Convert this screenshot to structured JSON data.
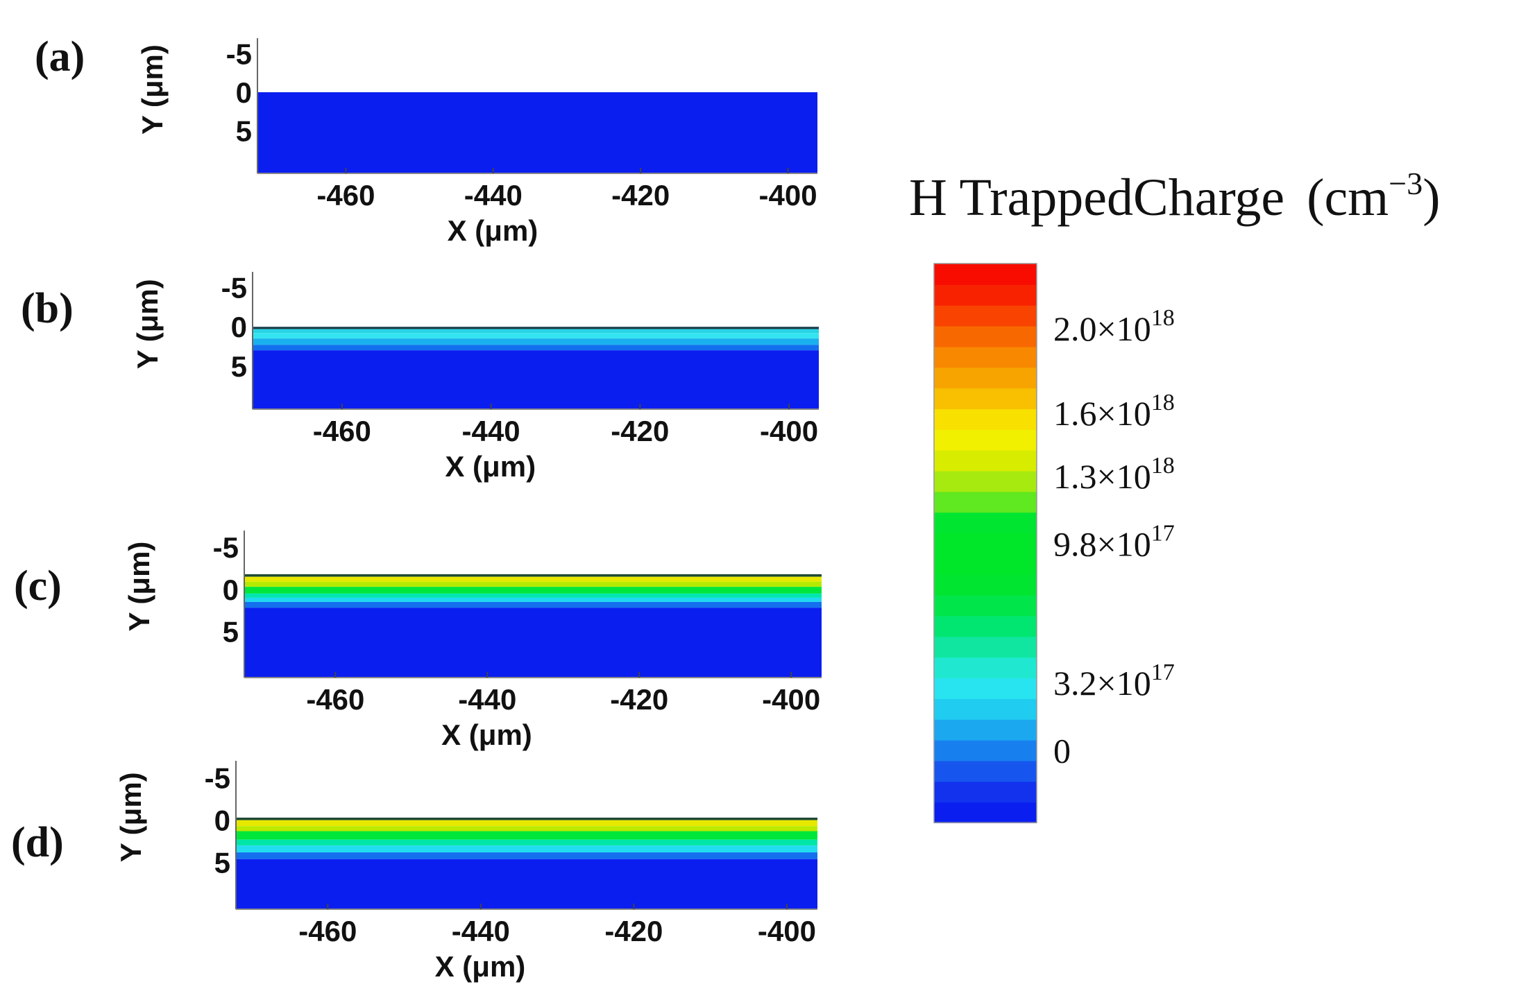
{
  "chart_data": [
    {
      "type": "heatmap",
      "panel_label": "(a)",
      "xlabel": "X (μm)",
      "ylabel": "Y (μm)",
      "xlim": [
        -472,
        -396
      ],
      "ylim": [
        -7,
        10.5
      ],
      "x_ticks": [
        -460,
        -440,
        -420,
        -400
      ],
      "x_tick_labels": [
        "-460",
        "-440",
        "-420",
        "-400"
      ],
      "y_ticks": [
        -5,
        0,
        5
      ],
      "y_tick_labels": [
        "-5",
        "0",
        "5"
      ],
      "bands": [
        {
          "y0": 0,
          "y1": 10.5,
          "color": "#0a1ef0"
        }
      ]
    },
    {
      "type": "heatmap",
      "panel_label": "(b)",
      "xlabel": "X (μm)",
      "ylabel": "Y (μm)",
      "xlim": [
        -472,
        -396
      ],
      "ylim": [
        -7,
        10.5
      ],
      "x_ticks": [
        -460,
        -440,
        -420,
        -400
      ],
      "x_tick_labels": [
        "-460",
        "-440",
        "-420",
        "-400"
      ],
      "y_ticks": [
        -5,
        0,
        5
      ],
      "y_tick_labels": [
        "-5",
        "0",
        "5"
      ],
      "bands": [
        {
          "y0": 0,
          "y1": 0.3,
          "color": "#1a3f4a"
        },
        {
          "y0": 0.3,
          "y1": 0.8,
          "color": "#28d4e6"
        },
        {
          "y0": 0.8,
          "y1": 1.5,
          "color": "#34e4f0"
        },
        {
          "y0": 1.5,
          "y1": 2.3,
          "color": "#1ab0ee"
        },
        {
          "y0": 2.3,
          "y1": 3.0,
          "color": "#1270ee"
        },
        {
          "y0": 3.0,
          "y1": 10.5,
          "color": "#0a1ef0"
        }
      ]
    },
    {
      "type": "heatmap",
      "panel_label": "(c)",
      "xlabel": "X (μm)",
      "ylabel": "Y (μm)",
      "xlim": [
        -472,
        -396
      ],
      "ylim": [
        -7,
        10.5
      ],
      "x_ticks": [
        -460,
        -440,
        -420,
        -400
      ],
      "x_tick_labels": [
        "-460",
        "-440",
        "-420",
        "-400"
      ],
      "y_ticks": [
        -5,
        0,
        5
      ],
      "y_tick_labels": [
        "-5",
        "0",
        "5"
      ],
      "bands": [
        {
          "y0": -1.8,
          "y1": -1.5,
          "color": "#1d4a33"
        },
        {
          "y0": -1.5,
          "y1": -0.9,
          "color": "#e6e800"
        },
        {
          "y0": -0.9,
          "y1": -0.3,
          "color": "#b4ea00"
        },
        {
          "y0": -0.3,
          "y1": 0.5,
          "color": "#00e63a"
        },
        {
          "y0": 0.5,
          "y1": 1.0,
          "color": "#00e6b0"
        },
        {
          "y0": 1.0,
          "y1": 1.5,
          "color": "#20d8f0"
        },
        {
          "y0": 1.5,
          "y1": 2.2,
          "color": "#1470ee"
        },
        {
          "y0": 2.2,
          "y1": 10.5,
          "color": "#0a1ef0"
        }
      ]
    },
    {
      "type": "heatmap",
      "panel_label": "(d)",
      "xlabel": "X (μm)",
      "ylabel": "Y (μm)",
      "xlim": [
        -472,
        -396
      ],
      "ylim": [
        -7,
        10.5
      ],
      "x_ticks": [
        -460,
        -440,
        -420,
        -400
      ],
      "x_tick_labels": [
        "-460",
        "-440",
        "-420",
        "-400"
      ],
      "y_ticks": [
        -5,
        0,
        5
      ],
      "y_tick_labels": [
        "-5",
        "0",
        "5"
      ],
      "bands": [
        {
          "y0": -0.3,
          "y1": 0,
          "color": "#1d4a33"
        },
        {
          "y0": 0,
          "y1": 0.7,
          "color": "#e6e800"
        },
        {
          "y0": 0.7,
          "y1": 1.3,
          "color": "#bcea00"
        },
        {
          "y0": 1.3,
          "y1": 2.3,
          "color": "#00e63a"
        },
        {
          "y0": 2.3,
          "y1": 3.0,
          "color": "#00e6a8"
        },
        {
          "y0": 3.0,
          "y1": 3.8,
          "color": "#22dcf0"
        },
        {
          "y0": 3.8,
          "y1": 4.6,
          "color": "#1470ee"
        },
        {
          "y0": 4.6,
          "y1": 10.5,
          "color": "#0a1ef0"
        }
      ]
    }
  ],
  "colorbar": {
    "title": "H TrappedCharge",
    "unit_prefix": "(cm",
    "unit_exp": "−3",
    "unit_suffix": ")",
    "range": [
      -0.35,
      2.3
    ],
    "ticks": [
      {
        "value": 2.0,
        "mantissa": "2.0×10",
        "exp": "18"
      },
      {
        "value": 1.6,
        "mantissa": "1.6×10",
        "exp": "18"
      },
      {
        "value": 1.3,
        "mantissa": "1.3×10",
        "exp": "18"
      },
      {
        "value": 0.98,
        "mantissa": "9.8×10",
        "exp": "17"
      },
      {
        "value": 0.32,
        "mantissa": "3.2×10",
        "exp": "17"
      },
      {
        "value": 0,
        "mantissa": "0",
        "exp": ""
      }
    ],
    "colors": [
      "#0a1ef0",
      "#1232ee",
      "#1656ee",
      "#1880ee",
      "#1ca8ee",
      "#20ccf0",
      "#28e4f0",
      "#20e8d0",
      "#10e6a0",
      "#00e670",
      "#00e64a",
      "#00e630",
      "#00e628",
      "#00e628",
      "#00e630",
      "#60e820",
      "#a6ea10",
      "#d8ec00",
      "#f0f000",
      "#f8e000",
      "#f8c000",
      "#f8a400",
      "#f88800",
      "#f86800",
      "#f84400",
      "#f82200",
      "#f80c00"
    ]
  }
}
